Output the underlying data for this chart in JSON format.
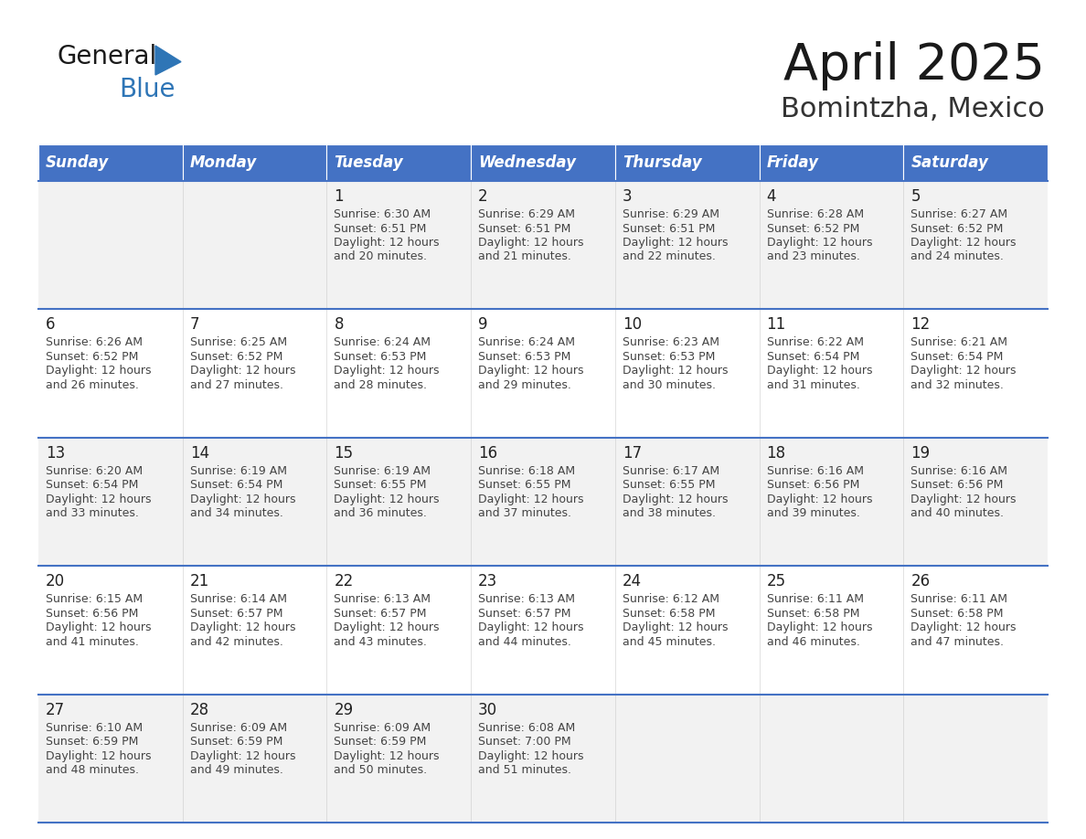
{
  "title": "April 2025",
  "subtitle": "Bomintzha, Mexico",
  "days_of_week": [
    "Sunday",
    "Monday",
    "Tuesday",
    "Wednesday",
    "Thursday",
    "Friday",
    "Saturday"
  ],
  "header_bg": "#4472C4",
  "header_text": "#FFFFFF",
  "row_bg_light": "#F2F2F2",
  "row_bg_white": "#FFFFFF",
  "cell_text_color": "#444444",
  "day_num_color": "#222222",
  "border_color": "#4472C4",
  "title_color": "#1a1a1a",
  "subtitle_color": "#333333",
  "logo_general_color": "#1a1a1a",
  "logo_blue_color": "#2E75B6",
  "weeks": [
    [
      {
        "day": null,
        "sunrise": null,
        "sunset": null,
        "daylight": null
      },
      {
        "day": null,
        "sunrise": null,
        "sunset": null,
        "daylight": null
      },
      {
        "day": 1,
        "sunrise": "6:30 AM",
        "sunset": "6:51 PM",
        "daylight_line1": "Daylight: 12 hours",
        "daylight_line2": "and 20 minutes."
      },
      {
        "day": 2,
        "sunrise": "6:29 AM",
        "sunset": "6:51 PM",
        "daylight_line1": "Daylight: 12 hours",
        "daylight_line2": "and 21 minutes."
      },
      {
        "day": 3,
        "sunrise": "6:29 AM",
        "sunset": "6:51 PM",
        "daylight_line1": "Daylight: 12 hours",
        "daylight_line2": "and 22 minutes."
      },
      {
        "day": 4,
        "sunrise": "6:28 AM",
        "sunset": "6:52 PM",
        "daylight_line1": "Daylight: 12 hours",
        "daylight_line2": "and 23 minutes."
      },
      {
        "day": 5,
        "sunrise": "6:27 AM",
        "sunset": "6:52 PM",
        "daylight_line1": "Daylight: 12 hours",
        "daylight_line2": "and 24 minutes."
      }
    ],
    [
      {
        "day": 6,
        "sunrise": "6:26 AM",
        "sunset": "6:52 PM",
        "daylight_line1": "Daylight: 12 hours",
        "daylight_line2": "and 26 minutes."
      },
      {
        "day": 7,
        "sunrise": "6:25 AM",
        "sunset": "6:52 PM",
        "daylight_line1": "Daylight: 12 hours",
        "daylight_line2": "and 27 minutes."
      },
      {
        "day": 8,
        "sunrise": "6:24 AM",
        "sunset": "6:53 PM",
        "daylight_line1": "Daylight: 12 hours",
        "daylight_line2": "and 28 minutes."
      },
      {
        "day": 9,
        "sunrise": "6:24 AM",
        "sunset": "6:53 PM",
        "daylight_line1": "Daylight: 12 hours",
        "daylight_line2": "and 29 minutes."
      },
      {
        "day": 10,
        "sunrise": "6:23 AM",
        "sunset": "6:53 PM",
        "daylight_line1": "Daylight: 12 hours",
        "daylight_line2": "and 30 minutes."
      },
      {
        "day": 11,
        "sunrise": "6:22 AM",
        "sunset": "6:54 PM",
        "daylight_line1": "Daylight: 12 hours",
        "daylight_line2": "and 31 minutes."
      },
      {
        "day": 12,
        "sunrise": "6:21 AM",
        "sunset": "6:54 PM",
        "daylight_line1": "Daylight: 12 hours",
        "daylight_line2": "and 32 minutes."
      }
    ],
    [
      {
        "day": 13,
        "sunrise": "6:20 AM",
        "sunset": "6:54 PM",
        "daylight_line1": "Daylight: 12 hours",
        "daylight_line2": "and 33 minutes."
      },
      {
        "day": 14,
        "sunrise": "6:19 AM",
        "sunset": "6:54 PM",
        "daylight_line1": "Daylight: 12 hours",
        "daylight_line2": "and 34 minutes."
      },
      {
        "day": 15,
        "sunrise": "6:19 AM",
        "sunset": "6:55 PM",
        "daylight_line1": "Daylight: 12 hours",
        "daylight_line2": "and 36 minutes."
      },
      {
        "day": 16,
        "sunrise": "6:18 AM",
        "sunset": "6:55 PM",
        "daylight_line1": "Daylight: 12 hours",
        "daylight_line2": "and 37 minutes."
      },
      {
        "day": 17,
        "sunrise": "6:17 AM",
        "sunset": "6:55 PM",
        "daylight_line1": "Daylight: 12 hours",
        "daylight_line2": "and 38 minutes."
      },
      {
        "day": 18,
        "sunrise": "6:16 AM",
        "sunset": "6:56 PM",
        "daylight_line1": "Daylight: 12 hours",
        "daylight_line2": "and 39 minutes."
      },
      {
        "day": 19,
        "sunrise": "6:16 AM",
        "sunset": "6:56 PM",
        "daylight_line1": "Daylight: 12 hours",
        "daylight_line2": "and 40 minutes."
      }
    ],
    [
      {
        "day": 20,
        "sunrise": "6:15 AM",
        "sunset": "6:56 PM",
        "daylight_line1": "Daylight: 12 hours",
        "daylight_line2": "and 41 minutes."
      },
      {
        "day": 21,
        "sunrise": "6:14 AM",
        "sunset": "6:57 PM",
        "daylight_line1": "Daylight: 12 hours",
        "daylight_line2": "and 42 minutes."
      },
      {
        "day": 22,
        "sunrise": "6:13 AM",
        "sunset": "6:57 PM",
        "daylight_line1": "Daylight: 12 hours",
        "daylight_line2": "and 43 minutes."
      },
      {
        "day": 23,
        "sunrise": "6:13 AM",
        "sunset": "6:57 PM",
        "daylight_line1": "Daylight: 12 hours",
        "daylight_line2": "and 44 minutes."
      },
      {
        "day": 24,
        "sunrise": "6:12 AM",
        "sunset": "6:58 PM",
        "daylight_line1": "Daylight: 12 hours",
        "daylight_line2": "and 45 minutes."
      },
      {
        "day": 25,
        "sunrise": "6:11 AM",
        "sunset": "6:58 PM",
        "daylight_line1": "Daylight: 12 hours",
        "daylight_line2": "and 46 minutes."
      },
      {
        "day": 26,
        "sunrise": "6:11 AM",
        "sunset": "6:58 PM",
        "daylight_line1": "Daylight: 12 hours",
        "daylight_line2": "and 47 minutes."
      }
    ],
    [
      {
        "day": 27,
        "sunrise": "6:10 AM",
        "sunset": "6:59 PM",
        "daylight_line1": "Daylight: 12 hours",
        "daylight_line2": "and 48 minutes."
      },
      {
        "day": 28,
        "sunrise": "6:09 AM",
        "sunset": "6:59 PM",
        "daylight_line1": "Daylight: 12 hours",
        "daylight_line2": "and 49 minutes."
      },
      {
        "day": 29,
        "sunrise": "6:09 AM",
        "sunset": "6:59 PM",
        "daylight_line1": "Daylight: 12 hours",
        "daylight_line2": "and 50 minutes."
      },
      {
        "day": 30,
        "sunrise": "6:08 AM",
        "sunset": "7:00 PM",
        "daylight_line1": "Daylight: 12 hours",
        "daylight_line2": "and 51 minutes."
      },
      {
        "day": null,
        "sunrise": null,
        "sunset": null,
        "daylight_line1": null,
        "daylight_line2": null
      },
      {
        "day": null,
        "sunrise": null,
        "sunset": null,
        "daylight_line1": null,
        "daylight_line2": null
      },
      {
        "day": null,
        "sunrise": null,
        "sunset": null,
        "daylight_line1": null,
        "daylight_line2": null
      }
    ]
  ]
}
